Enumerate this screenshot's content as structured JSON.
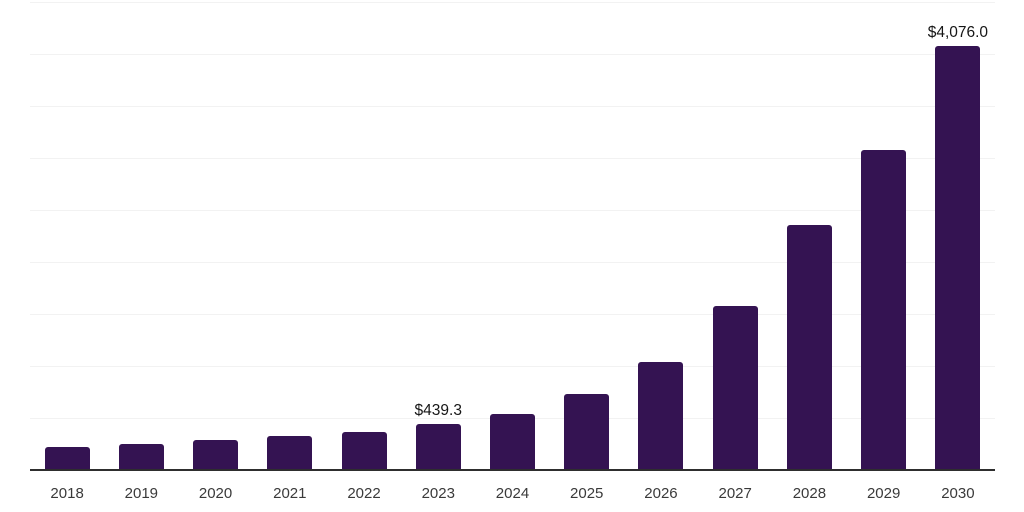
{
  "chart_data": {
    "type": "bar",
    "title": "",
    "xlabel": "",
    "ylabel": "",
    "categories": [
      "2018",
      "2019",
      "2020",
      "2021",
      "2022",
      "2023",
      "2024",
      "2025",
      "2026",
      "2027",
      "2028",
      "2029",
      "2030"
    ],
    "values": [
      225,
      250,
      285,
      330,
      370,
      439.3,
      535,
      735,
      1035,
      1580,
      2355,
      3075,
      4076
    ],
    "data_labels": [
      {
        "category": "2023",
        "text": "$439.3"
      },
      {
        "category": "2030",
        "text": "$4,076.0"
      }
    ],
    "ylim": [
      0,
      4500
    ],
    "grid_step": 500,
    "grid": "horizontal-only",
    "legend": "none",
    "colors": {
      "bar": "#341352",
      "axis_line": "#2e2e2e",
      "gridline": "#f2f2f2",
      "tick_label": "#3a3a3a",
      "data_label": "#161616",
      "background": "#ffffff"
    }
  }
}
